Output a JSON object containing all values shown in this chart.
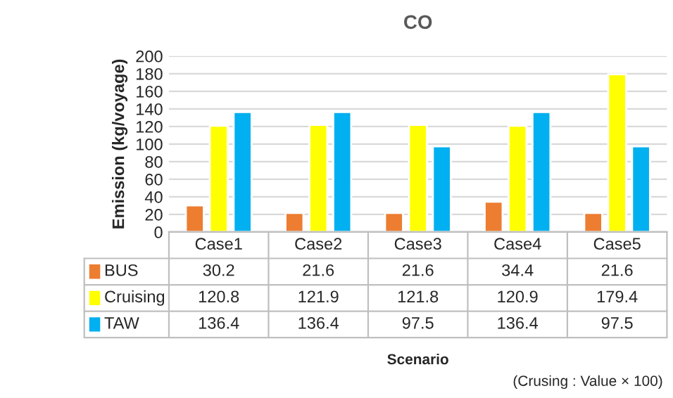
{
  "chart_data": {
    "type": "bar",
    "title": "CO",
    "ylabel": "Emission (kg/voyage)",
    "categories": [
      "Case1",
      "Case2",
      "Case3",
      "Case4",
      "Case5"
    ],
    "series": [
      {
        "name": "BUS",
        "color": "#ed7d31",
        "values": [
          30.2,
          21.6,
          21.6,
          34.4,
          21.6
        ]
      },
      {
        "name": "Cruising",
        "color": "#ffff00",
        "values": [
          120.8,
          121.9,
          121.8,
          120.9,
          179.4
        ]
      },
      {
        "name": "TAW",
        "color": "#00b0f0",
        "values": [
          136.4,
          136.4,
          97.5,
          136.4,
          97.5
        ]
      }
    ],
    "ylim": [
      0,
      200
    ],
    "yticks": [
      0,
      20,
      40,
      60,
      80,
      100,
      120,
      140,
      160,
      180,
      200
    ],
    "grid": "y",
    "data_labels": true,
    "legend": "bottom",
    "annotations": [
      "Scenario",
      "(Crusing : Value × 100)"
    ]
  }
}
